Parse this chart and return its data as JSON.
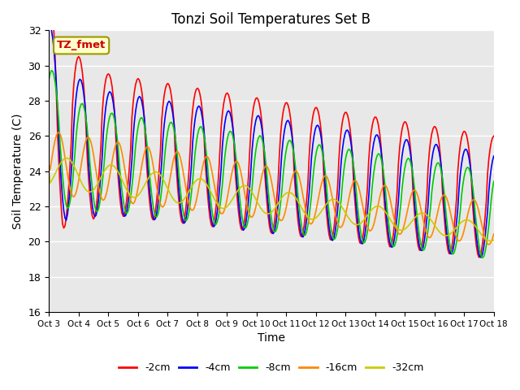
{
  "title": "Tonzi Soil Temperatures Set B",
  "xlabel": "Time",
  "ylabel": "Soil Temperature (C)",
  "ylim": [
    16,
    32
  ],
  "xlim": [
    0,
    360
  ],
  "series_labels": [
    "-2cm",
    "-4cm",
    "-8cm",
    "-16cm",
    "-32cm"
  ],
  "series_colors": [
    "#ff0000",
    "#0000ff",
    "#00cc00",
    "#ff8800",
    "#cccc00"
  ],
  "annotation_text": "TZ_fmet",
  "annotation_bg": "#ffffcc",
  "annotation_border": "#999900",
  "plot_bg": "#e8e8e8",
  "n_points": 360,
  "tick_labels": [
    "Oct 3",
    "Oct 4",
    "Oct 5",
    "Oct 6",
    "Oct 7",
    "Oct 8",
    "Oct 9",
    "Oct 10",
    "Oct 11",
    "Oct 12",
    "Oct 13",
    "Oct 14",
    "Oct 15",
    "Oct 16",
    "Oct 17",
    "Oct 18"
  ],
  "tick_positions": [
    0,
    24,
    48,
    72,
    96,
    120,
    144,
    168,
    192,
    216,
    240,
    264,
    288,
    312,
    336,
    360
  ],
  "yticks": [
    16,
    18,
    20,
    22,
    24,
    26,
    28,
    30,
    32
  ]
}
